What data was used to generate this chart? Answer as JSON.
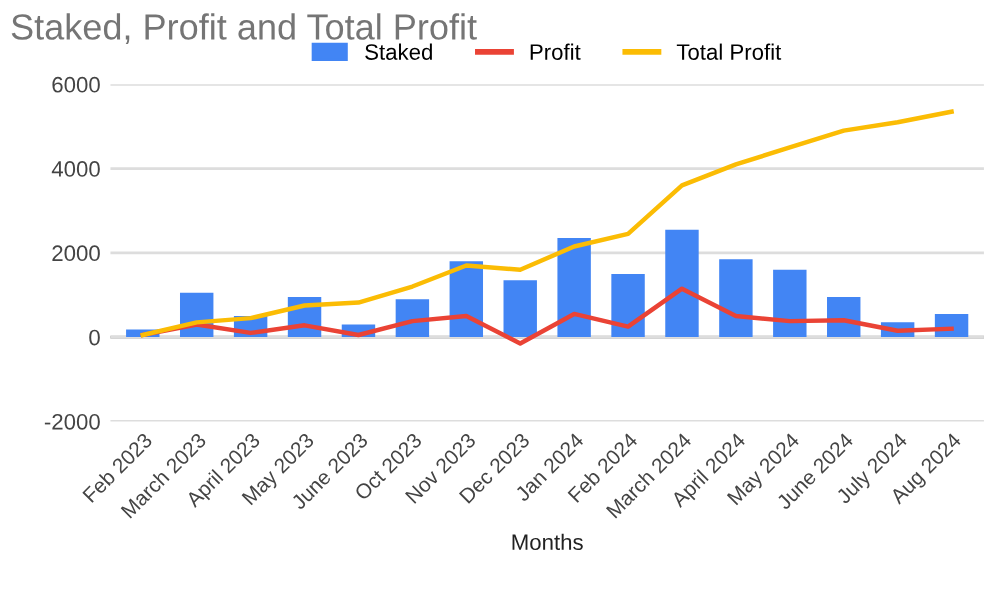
{
  "chart_data": {
    "type": "bar",
    "title": "Staked, Profit and Total Profit",
    "xlabel": "Months",
    "categories": [
      "Feb 2023",
      "March 2023",
      "April 2023",
      "May 2023",
      "June 2023",
      "Oct 2023",
      "Nov 2023",
      "Dec 2023",
      "Jan 2024",
      "Feb 2024",
      "March 2024",
      "April 2024",
      "May 2024",
      "June 2024",
      "July 2024",
      "Aug 2024"
    ],
    "series": [
      {
        "name": "Staked",
        "color": "#4285f4",
        "values": [
          180,
          1050,
          500,
          950,
          300,
          900,
          1800,
          1350,
          2350,
          1500,
          2550,
          1850,
          1600,
          950,
          350,
          550
        ]
      },
      {
        "name": "Profit",
        "type": "line",
        "color": "#ea4335",
        "values": [
          50,
          300,
          100,
          280,
          50,
          380,
          500,
          -150,
          550,
          250,
          1150,
          500,
          380,
          400,
          150,
          200
        ]
      },
      {
        "name": "Total Profit",
        "type": "line",
        "color": "#fbbc04",
        "values": [
          50,
          350,
          450,
          750,
          820,
          1200,
          1700,
          1600,
          2150,
          2450,
          3600,
          4100,
          4500,
          4900,
          5100,
          5350
        ]
      }
    ],
    "ylim": [
      -2000,
      6000
    ],
    "yticks": [
      -2000,
      0,
      2000,
      4000,
      6000
    ],
    "grid": "y",
    "legend": "top"
  }
}
